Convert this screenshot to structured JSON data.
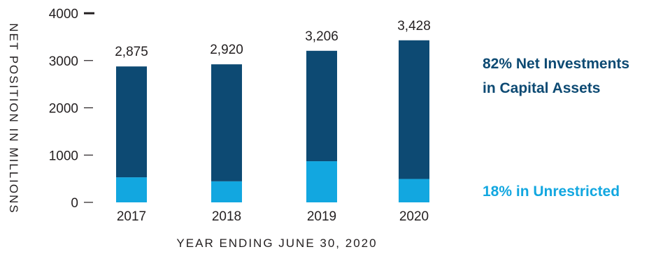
{
  "chart_data": {
    "type": "bar",
    "stacked": true,
    "categories": [
      "2017",
      "2018",
      "2019",
      "2020"
    ],
    "series": [
      {
        "values": [
          530,
          445,
          870,
          495
        ]
      },
      {
        "values": [
          2345,
          2475,
          2336,
          2933
        ]
      }
    ],
    "totals": [
      "2,875",
      "2,920",
      "3,206",
      "3,428"
    ],
    "xlabel": "YEAR ENDING JUNE 30, 2020",
    "ylabel": "NET POSITION IN MILLIONS",
    "yticks": [
      0,
      1000,
      2000,
      3000,
      4000
    ],
    "ylim": [
      0,
      4000
    ],
    "grid": false,
    "legend_position": "right",
    "colors": {
      "bottom": "#12a7e0",
      "top": "#0d4a73"
    }
  },
  "legend": {
    "top_line1": "82% Net Investments",
    "top_line2": "in Capital Assets",
    "bottom": "18% in Unrestricted"
  }
}
